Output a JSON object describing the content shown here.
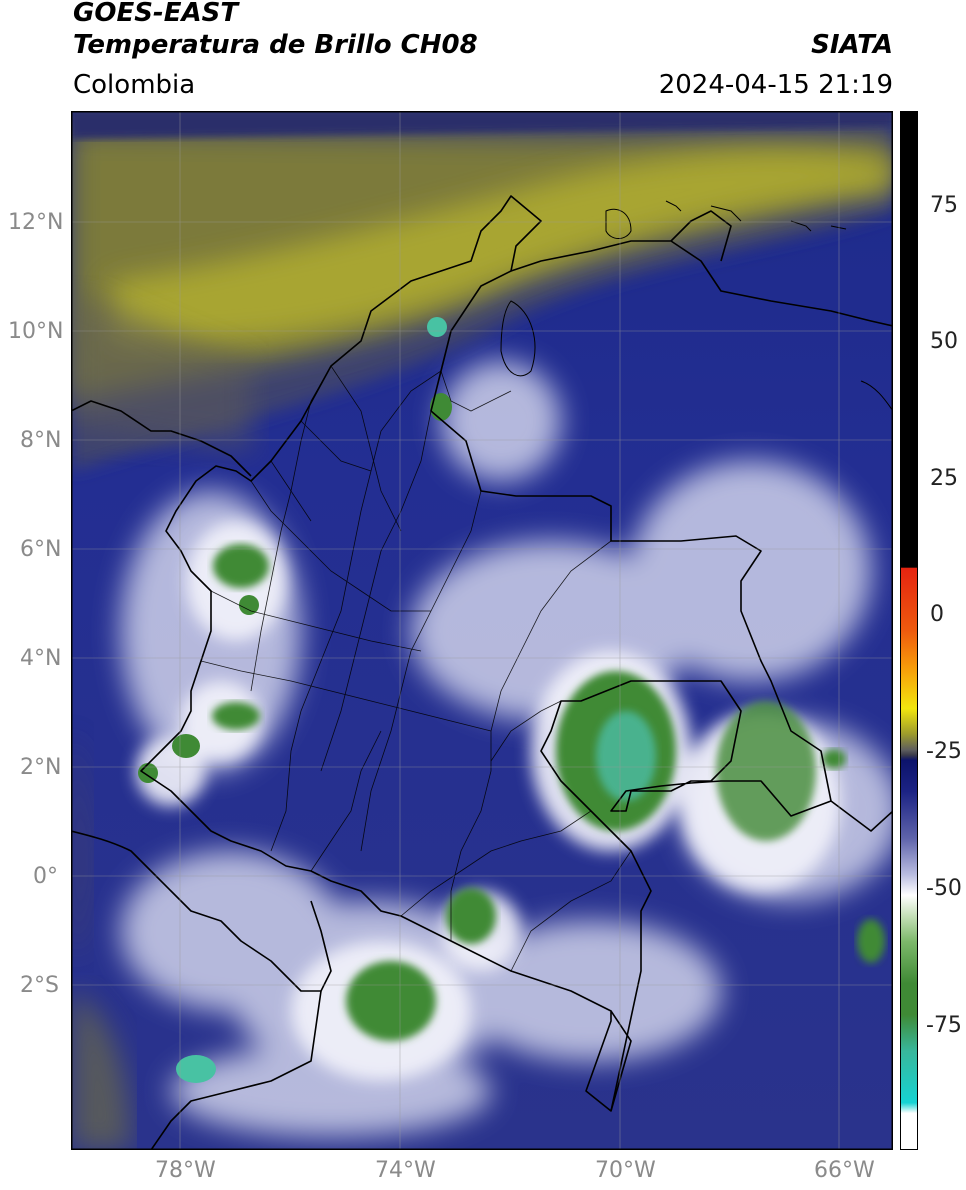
{
  "header": {
    "satellite": "GOES-EAST",
    "product": "Temperatura de Brillo CH08",
    "region": "Colombia",
    "organization": "SIATA",
    "datetime": "2024-04-15 21:19"
  },
  "axes": {
    "lat_labels": [
      "12°N",
      "10°N",
      "8°N",
      "6°N",
      "4°N",
      "2°N",
      "0°",
      "2°S"
    ],
    "lon_labels": [
      "78°W",
      "74°W",
      "70°W",
      "66°W"
    ]
  },
  "colorbar": {
    "ticks": [
      "75",
      "50",
      "25",
      "0",
      "-25",
      "-50",
      "-75"
    ],
    "colors": {
      "black": "#000000",
      "red": "#e52410",
      "orange": "#f79a0a",
      "yellow": "#f2e60e",
      "olive": "#8a8a3a",
      "navy": "#141a80",
      "lavender": "#b9bce0",
      "white": "#ffffff",
      "green": "#3f8a35",
      "teal": "#38b79b",
      "cyan": "#16d3d3"
    }
  }
}
